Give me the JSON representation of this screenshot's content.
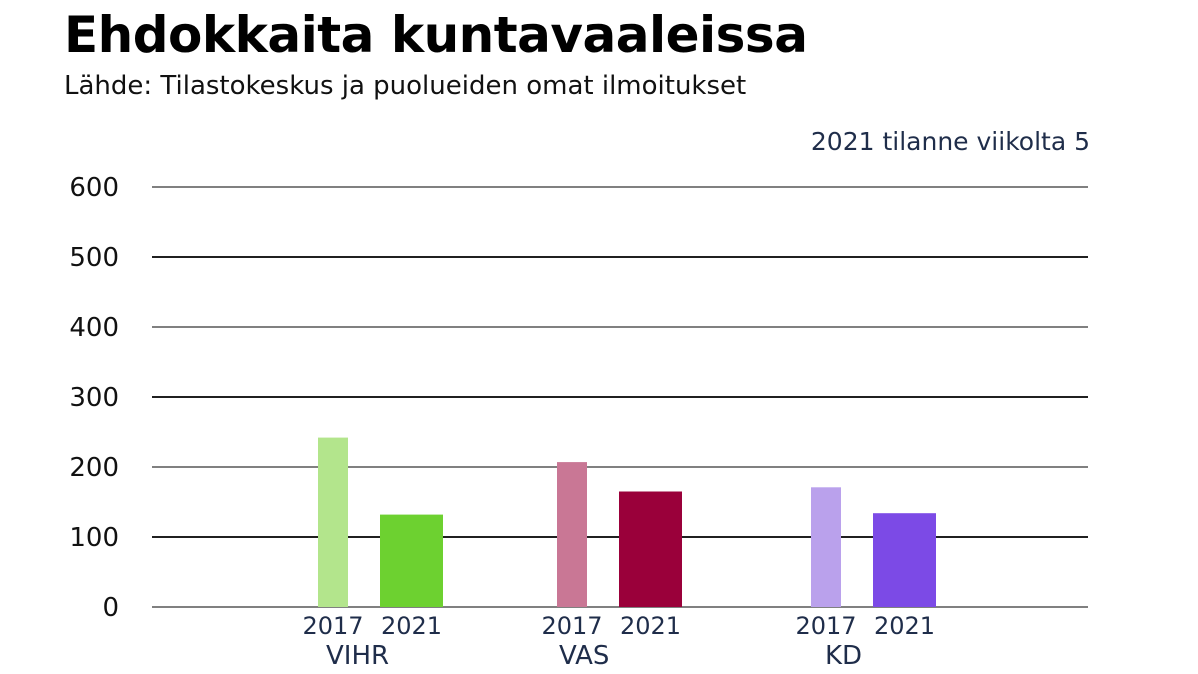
{
  "chart_data": {
    "type": "bar",
    "title": "Ehdokkaita kuntavaaleissa",
    "subtitle": "Lähde:  Tilastokeskus ja puolueiden omat ilmoitukset",
    "annotation": "2021 tilanne viikolta 5",
    "xlabel": "",
    "ylabel": "",
    "ylim": [
      0,
      600
    ],
    "yticks": [
      "0",
      "100",
      "200",
      "300",
      "400",
      "500",
      "600"
    ],
    "grid": true,
    "groups": [
      {
        "label": "VIHR",
        "bars": [
          {
            "label": "2017",
            "value": 242,
            "color": "#b3e58c"
          },
          {
            "label": "2021",
            "value": 132,
            "color": "#6dd130"
          }
        ]
      },
      {
        "label": "VAS",
        "bars": [
          {
            "label": "2017",
            "value": 207,
            "color": "#c97795"
          },
          {
            "label": "2021",
            "value": 165,
            "color": "#9a003a"
          }
        ]
      },
      {
        "label": "KD",
        "bars": [
          {
            "label": "2017",
            "value": 171,
            "color": "#baa1ec"
          },
          {
            "label": "2021",
            "value": 134,
            "color": "#7c4ae6"
          }
        ]
      }
    ]
  }
}
